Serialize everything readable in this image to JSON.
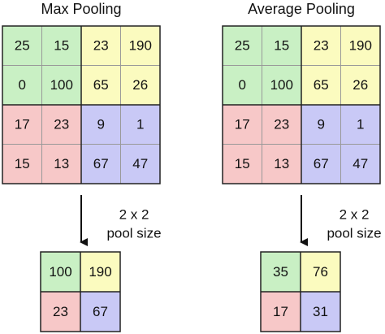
{
  "panels": [
    {
      "title": "Max Pooling",
      "input": [
        [
          25,
          15,
          23,
          190
        ],
        [
          0,
          100,
          65,
          26
        ],
        [
          17,
          23,
          9,
          1
        ],
        [
          15,
          13,
          67,
          47
        ]
      ],
      "pool_label": [
        "2 x 2",
        "pool size"
      ],
      "output": [
        [
          100,
          190
        ],
        [
          23,
          67
        ]
      ]
    },
    {
      "title": "Average Pooling",
      "input": [
        [
          25,
          15,
          23,
          190
        ],
        [
          0,
          100,
          65,
          26
        ],
        [
          17,
          23,
          9,
          1
        ],
        [
          15,
          13,
          67,
          47
        ]
      ],
      "pool_label": [
        "2 x 2",
        "pool size"
      ],
      "output": [
        [
          35,
          76
        ],
        [
          17,
          31
        ]
      ]
    }
  ]
}
